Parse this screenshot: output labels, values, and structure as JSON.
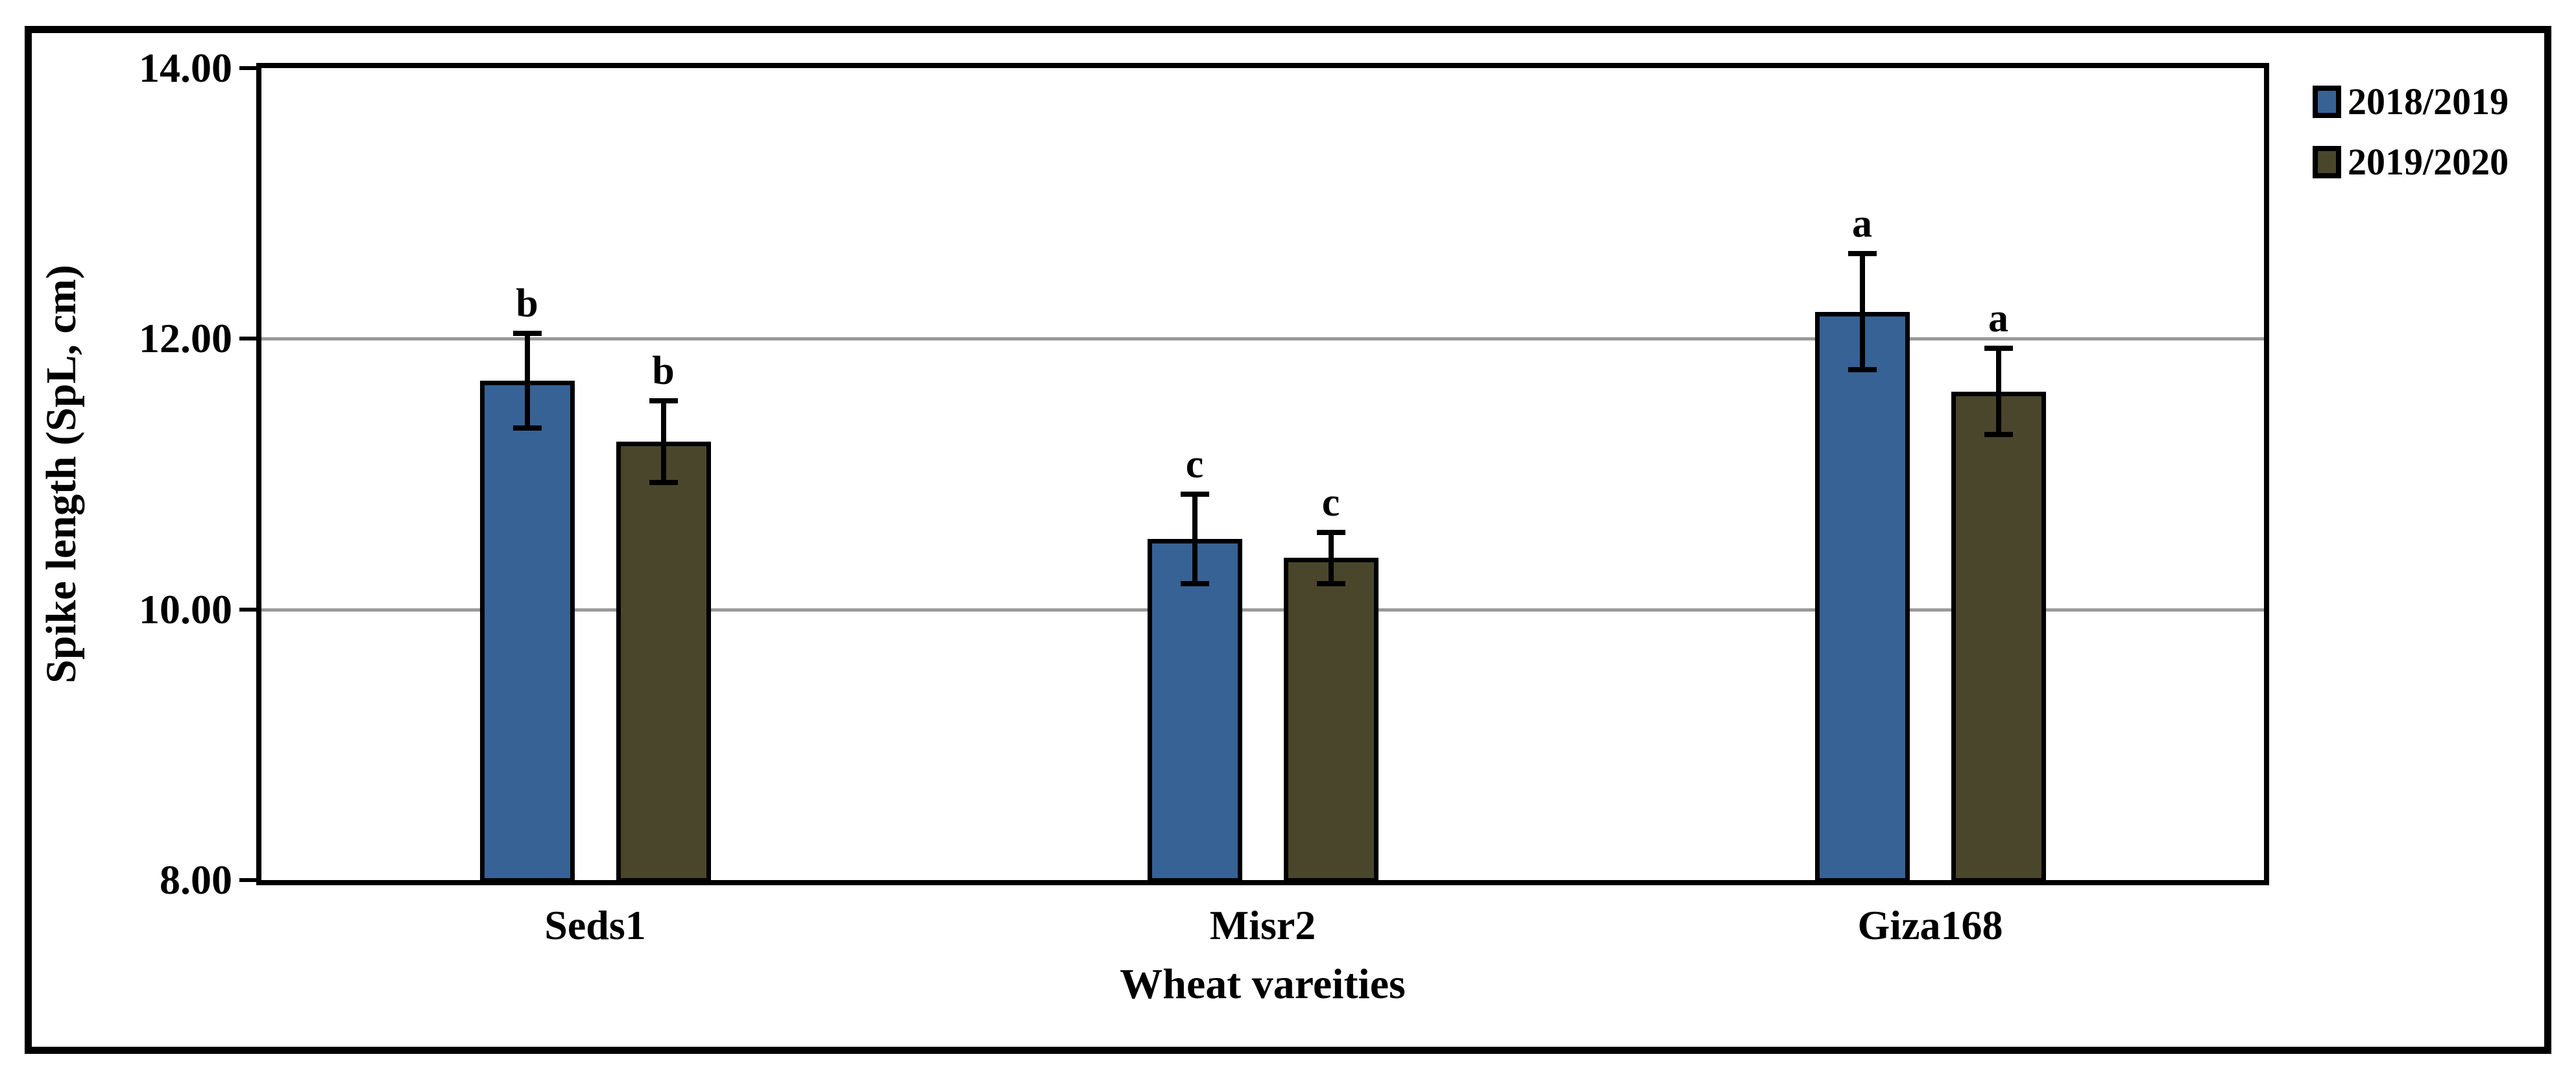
{
  "chart_data": {
    "type": "bar",
    "title": "",
    "xlabel": "Wheat vareities",
    "ylabel": "Spike length (SpL, cm)",
    "categories": [
      "Seds1",
      "Misr2",
      "Giza168"
    ],
    "series": [
      {
        "name": "2018/2019",
        "color": "#376295",
        "values": [
          11.69,
          10.52,
          12.2
        ],
        "errors": [
          0.35,
          0.33,
          0.43
        ],
        "sig_letters": [
          "b",
          "c",
          "a"
        ]
      },
      {
        "name": "2019/2020",
        "color": "#4A462B",
        "values": [
          11.24,
          10.38,
          11.61
        ],
        "errors": [
          0.3,
          0.19,
          0.32
        ],
        "sig_letters": [
          "b",
          "c",
          "a"
        ]
      }
    ],
    "ylim": [
      8,
      14
    ],
    "yticks": [
      14,
      12,
      10,
      8
    ],
    "ytick_labels": [
      "14.00",
      "12.00",
      "10.00",
      "8.00"
    ],
    "grid": "horizontal gridlines at interior ticks",
    "grid_color": "#9a9a9a",
    "axis_color": "#000000",
    "text_color": "#000000",
    "error_bars": "vertical with end caps",
    "legend_position": "top-right outside plot"
  }
}
